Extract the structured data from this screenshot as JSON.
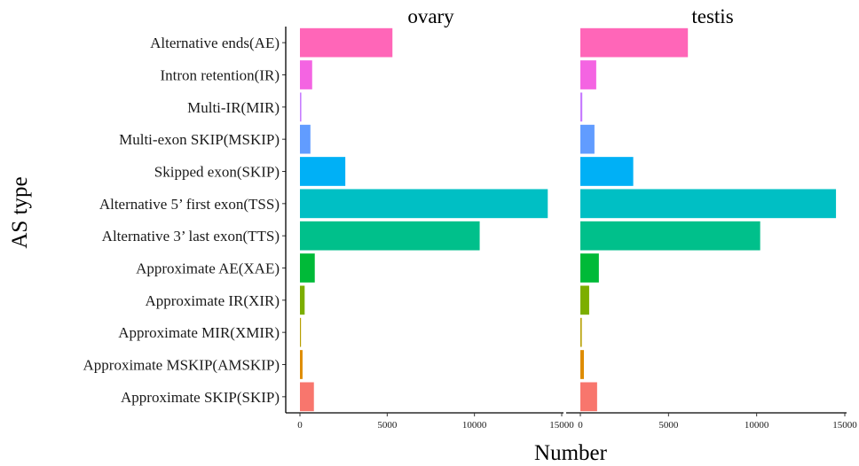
{
  "chart_data": {
    "type": "bar",
    "orientation": "horizontal",
    "xlabel": "Number",
    "ylabel": "AS  type",
    "xlim": [
      0,
      15000
    ],
    "x_ticks": [
      "0",
      "5000",
      "10000",
      "15000"
    ],
    "categories": [
      "Alternative ends(AE)",
      "Intron retention(IR)",
      "Multi-IR(MIR)",
      "Multi-exon SKIP(MSKIP)",
      "Skipped exon(SKIP)",
      "Alternative 5’ first exon(TSS)",
      "Alternative 3’ last exon(TTS)",
      "Approximate AE(XAE)",
      "Approximate IR(XIR)",
      "Approximate MIR(XMIR)",
      "Approximate MSKIP(AMSKIP)",
      "Approximate SKIP(SKIP)"
    ],
    "colors": [
      "#FF66B8",
      "#F464E2",
      "#C77CFF",
      "#619CFF",
      "#00B0F6",
      "#00BFC4",
      "#00C08B",
      "#00BA38",
      "#7CAE00",
      "#B79F00",
      "#DE8C00",
      "#F8766D"
    ],
    "panels": [
      {
        "name": "ovary",
        "values": [
          5300,
          700,
          80,
          600,
          2600,
          14200,
          10300,
          850,
          270,
          60,
          150,
          800
        ]
      },
      {
        "name": "testis",
        "values": [
          6100,
          900,
          110,
          800,
          3000,
          14500,
          10200,
          1050,
          500,
          80,
          200,
          950
        ]
      }
    ],
    "grid": false,
    "legend": "none"
  }
}
